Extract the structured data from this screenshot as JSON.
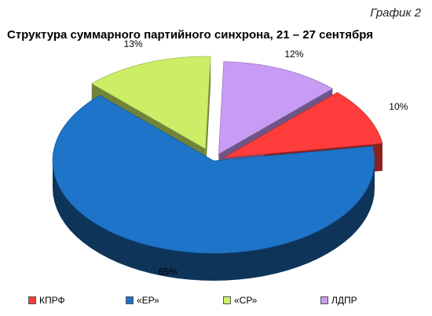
{
  "caption": "График 2",
  "chart_data": {
    "type": "pie",
    "title": "Структура суммарного партийного синхрона, 21 – 27 сентября",
    "categories": [
      "КПРФ",
      "«ЕР»",
      "«СР»",
      "ЛДПР"
    ],
    "values": [
      10,
      65,
      13,
      12
    ],
    "labels": [
      "10%",
      "65%",
      "13%",
      "12%"
    ],
    "colors": [
      "#FF3C3C",
      "#1E74C8",
      "#CCEE66",
      "#C89BF4"
    ],
    "legend_position": "bottom"
  }
}
